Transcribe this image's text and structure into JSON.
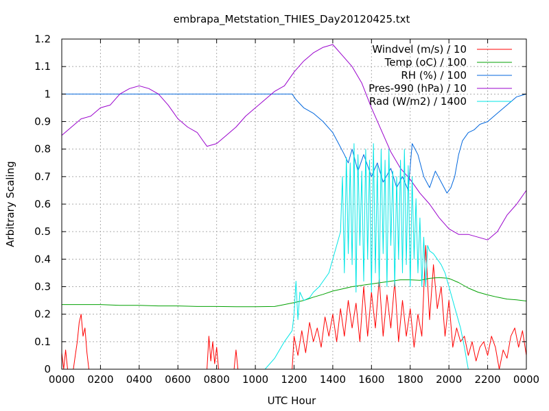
{
  "chart_data": {
    "type": "line",
    "title": "embrapa_Metstation_THIES_Day20120425.txt",
    "xlabel": "UTC Hour",
    "ylabel": "Arbitrary Scaling",
    "xlim": [
      0,
      24
    ],
    "ylim": [
      0,
      1.2
    ],
    "grid": true,
    "legend_position": "top-right",
    "x_tick_labels": [
      "0000",
      "0200",
      "0400",
      "0600",
      "0800",
      "1000",
      "1200",
      "1400",
      "1600",
      "1800",
      "2000",
      "2200",
      "0000"
    ],
    "y_tick_labels": [
      "0",
      "0.1",
      "0.2",
      "0.3",
      "0.4",
      "0.5",
      "0.6",
      "0.7",
      "0.8",
      "0.9",
      "1",
      "1.1",
      "1.2"
    ],
    "series": [
      {
        "name": "Windvel (m/s) / 10",
        "color": "#ff0000",
        "x": [
          0.0,
          0.1,
          0.2,
          0.3,
          0.4,
          0.5,
          0.6,
          0.7,
          0.8,
          0.9,
          1.0,
          1.1,
          1.2,
          1.3,
          1.4,
          1.5,
          1.6,
          1.7,
          1.8,
          1.9,
          2.0,
          2.5,
          3.0,
          4.0,
          5.0,
          6.0,
          7.0,
          7.5,
          7.6,
          7.7,
          7.8,
          7.9,
          8.0,
          8.1,
          8.3,
          8.9,
          9.0,
          9.1,
          9.5,
          10.0,
          11.0,
          11.9,
          12.0,
          12.2,
          12.4,
          12.6,
          12.8,
          13.0,
          13.2,
          13.4,
          13.6,
          13.8,
          14.0,
          14.2,
          14.4,
          14.6,
          14.8,
          15.0,
          15.2,
          15.4,
          15.6,
          15.8,
          16.0,
          16.2,
          16.4,
          16.6,
          16.8,
          17.0,
          17.2,
          17.4,
          17.6,
          17.8,
          18.0,
          18.2,
          18.4,
          18.6,
          18.8,
          19.0,
          19.2,
          19.4,
          19.6,
          19.8,
          20.0,
          20.2,
          20.4,
          20.6,
          20.8,
          21.0,
          21.2,
          21.4,
          21.6,
          21.8,
          22.0,
          22.2,
          22.4,
          22.6,
          22.8,
          23.0,
          23.2,
          23.4,
          23.6,
          23.8,
          24.0
        ],
        "y": [
          0.06,
          0.0,
          0.07,
          0.0,
          0.0,
          0.0,
          0.0,
          0.05,
          0.1,
          0.17,
          0.2,
          0.12,
          0.15,
          0.06,
          0.0,
          0.0,
          0.0,
          0.0,
          0.0,
          0.0,
          0.0,
          0.0,
          0.0,
          0.0,
          0.0,
          0.0,
          0.0,
          0.0,
          0.12,
          0.03,
          0.1,
          0.02,
          0.08,
          0.0,
          0.0,
          0.0,
          0.07,
          0.0,
          0.0,
          0.0,
          0.0,
          0.0,
          0.12,
          0.05,
          0.14,
          0.06,
          0.17,
          0.1,
          0.15,
          0.08,
          0.19,
          0.12,
          0.2,
          0.1,
          0.22,
          0.12,
          0.25,
          0.15,
          0.24,
          0.1,
          0.3,
          0.12,
          0.28,
          0.15,
          0.33,
          0.12,
          0.27,
          0.15,
          0.32,
          0.1,
          0.25,
          0.12,
          0.22,
          0.08,
          0.2,
          0.12,
          0.45,
          0.18,
          0.38,
          0.22,
          0.3,
          0.12,
          0.25,
          0.08,
          0.15,
          0.1,
          0.12,
          0.05,
          0.1,
          0.03,
          0.08,
          0.1,
          0.05,
          0.12,
          0.08,
          0.0,
          0.07,
          0.04,
          0.12,
          0.15,
          0.08,
          0.14,
          0.05
        ]
      },
      {
        "name": "Temp (oC) / 100",
        "color": "#00a000",
        "x": [
          0,
          1,
          2,
          3,
          4,
          5,
          6,
          7,
          8,
          9,
          10,
          11,
          11.5,
          12,
          12.5,
          13,
          13.5,
          14,
          14.5,
          15,
          15.5,
          16,
          16.5,
          17,
          17.5,
          18,
          18.5,
          19,
          19.5,
          20,
          20.5,
          21,
          21.5,
          22,
          22.5,
          23,
          23.5,
          24
        ],
        "y": [
          0.235,
          0.235,
          0.235,
          0.232,
          0.232,
          0.23,
          0.23,
          0.228,
          0.228,
          0.227,
          0.227,
          0.228,
          0.235,
          0.242,
          0.25,
          0.262,
          0.272,
          0.284,
          0.292,
          0.3,
          0.305,
          0.31,
          0.315,
          0.32,
          0.325,
          0.325,
          0.323,
          0.33,
          0.333,
          0.33,
          0.315,
          0.295,
          0.28,
          0.27,
          0.262,
          0.255,
          0.252,
          0.248
        ]
      },
      {
        "name": "RH (%) / 100",
        "color": "#0066dd",
        "x": [
          0,
          2,
          4,
          6,
          8,
          10,
          11,
          11.9,
          12.1,
          12.5,
          13,
          13.5,
          14,
          14.3,
          14.6,
          14.8,
          15,
          15.3,
          15.6,
          16,
          16.3,
          16.6,
          17,
          17.3,
          17.6,
          17.9,
          18.1,
          18.4,
          18.7,
          19,
          19.3,
          19.6,
          19.9,
          20.1,
          20.3,
          20.5,
          20.7,
          21,
          21.3,
          21.6,
          22,
          22.5,
          23,
          23.5,
          24
        ],
        "y": [
          1.0,
          1.0,
          1.0,
          1.0,
          1.0,
          1.0,
          1.0,
          1.0,
          0.98,
          0.95,
          0.93,
          0.9,
          0.86,
          0.82,
          0.78,
          0.75,
          0.8,
          0.72,
          0.78,
          0.7,
          0.75,
          0.68,
          0.73,
          0.66,
          0.7,
          0.65,
          0.82,
          0.78,
          0.7,
          0.66,
          0.72,
          0.68,
          0.64,
          0.66,
          0.7,
          0.78,
          0.83,
          0.86,
          0.87,
          0.89,
          0.9,
          0.93,
          0.96,
          0.99,
          1.0
        ]
      },
      {
        "name": "Pres-990 (hPa) / 10",
        "color": "#9900cc",
        "x": [
          0,
          0.5,
          1,
          1.5,
          2,
          2.5,
          3,
          3.5,
          4,
          4.5,
          5,
          5.5,
          6,
          6.5,
          7,
          7.3,
          7.5,
          8,
          8.5,
          9,
          9.5,
          10,
          10.5,
          11,
          11.5,
          12,
          12.5,
          13,
          13.5,
          14,
          14.5,
          15,
          15.5,
          16,
          16.5,
          17,
          17.5,
          18,
          18.5,
          19,
          19.5,
          20,
          20.5,
          21,
          21.5,
          22,
          22.5,
          23,
          23.5,
          24
        ],
        "y": [
          0.85,
          0.88,
          0.91,
          0.92,
          0.95,
          0.96,
          1.0,
          1.02,
          1.03,
          1.02,
          1.0,
          0.96,
          0.91,
          0.88,
          0.86,
          0.83,
          0.81,
          0.82,
          0.85,
          0.88,
          0.92,
          0.95,
          0.98,
          1.01,
          1.03,
          1.08,
          1.12,
          1.15,
          1.17,
          1.18,
          1.14,
          1.1,
          1.04,
          0.95,
          0.87,
          0.79,
          0.73,
          0.69,
          0.64,
          0.6,
          0.55,
          0.51,
          0.49,
          0.49,
          0.48,
          0.47,
          0.5,
          0.56,
          0.6,
          0.65
        ]
      },
      {
        "name": "Rad (W/m2) / 1400",
        "color": "#00e5e5",
        "x": [
          0,
          2,
          4,
          6,
          8,
          10,
          10.5,
          11,
          11.5,
          11.9,
          12.0,
          12.1,
          12.2,
          12.3,
          12.5,
          12.8,
          13.0,
          13.3,
          13.5,
          13.8,
          14.0,
          14.2,
          14.4,
          14.5,
          14.6,
          14.7,
          14.8,
          14.9,
          15.0,
          15.1,
          15.2,
          15.3,
          15.4,
          15.5,
          15.6,
          15.7,
          15.8,
          15.9,
          16.0,
          16.1,
          16.2,
          16.3,
          16.4,
          16.5,
          16.6,
          16.7,
          16.8,
          16.9,
          17.0,
          17.1,
          17.2,
          17.3,
          17.4,
          17.5,
          17.6,
          17.7,
          17.8,
          17.9,
          18.0,
          18.1,
          18.2,
          18.3,
          18.4,
          18.5,
          18.6,
          18.7,
          18.8,
          18.9,
          19.0,
          19.2,
          19.4,
          19.6,
          19.8,
          20.0,
          20.2,
          20.4,
          20.6,
          20.8,
          21.0
        ],
        "y": [
          0,
          0,
          0,
          0,
          0,
          0,
          0.0,
          0.04,
          0.1,
          0.14,
          0.2,
          0.32,
          0.18,
          0.28,
          0.25,
          0.26,
          0.28,
          0.3,
          0.32,
          0.35,
          0.4,
          0.45,
          0.5,
          0.7,
          0.35,
          0.77,
          0.42,
          0.75,
          0.38,
          0.82,
          0.28,
          0.78,
          0.45,
          0.72,
          0.32,
          0.8,
          0.4,
          0.76,
          0.28,
          0.82,
          0.35,
          0.74,
          0.3,
          0.8,
          0.42,
          0.76,
          0.3,
          0.8,
          0.45,
          0.72,
          0.3,
          0.7,
          0.4,
          0.76,
          0.35,
          0.8,
          0.38,
          0.74,
          0.3,
          0.7,
          0.4,
          0.62,
          0.35,
          0.55,
          0.3,
          0.48,
          0.3,
          0.45,
          0.43,
          0.42,
          0.4,
          0.38,
          0.35,
          0.3,
          0.25,
          0.2,
          0.15,
          0.08,
          0.0
        ]
      }
    ]
  }
}
